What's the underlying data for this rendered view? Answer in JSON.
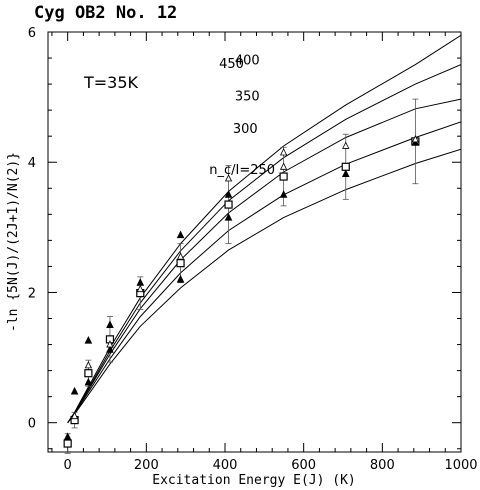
{
  "chart_data": {
    "type": "line",
    "title": "Cyg OB2 No. 12",
    "annotation": "T=35K",
    "xlabel": "Excitation Energy E(J) (K)",
    "ylabel": "-ln {5N(J)/(2J+1)/N(2)}",
    "xlim": [
      -50,
      1000
    ],
    "ylim": [
      -0.45,
      6
    ],
    "xticks": [
      0,
      200,
      400,
      600,
      800,
      1000
    ],
    "yticks": [
      0,
      2,
      4,
      6
    ],
    "grid": false,
    "series": [
      {
        "name": "450",
        "x": [
          0,
          17.6,
          52.7,
          107.5,
          184.6,
          287,
          409,
          549,
          707,
          884,
          1000
        ],
        "y": [
          0,
          0.16,
          0.55,
          1.15,
          1.92,
          2.75,
          3.55,
          4.25,
          4.88,
          5.5,
          5.95
        ]
      },
      {
        "name": "400",
        "x": [
          0,
          17.6,
          52.7,
          107.5,
          184.6,
          287,
          409,
          549,
          707,
          884,
          1000
        ],
        "y": [
          0,
          0.15,
          0.52,
          1.1,
          1.84,
          2.64,
          3.41,
          4.07,
          4.66,
          5.2,
          5.5
        ]
      },
      {
        "name": "350",
        "x": [
          0,
          17.6,
          52.7,
          107.5,
          184.6,
          287,
          409,
          549,
          707,
          884,
          1000
        ],
        "y": [
          0,
          0.15,
          0.5,
          1.05,
          1.75,
          2.5,
          3.22,
          3.85,
          4.38,
          4.82,
          4.97
        ]
      },
      {
        "name": "300",
        "x": [
          0,
          17.6,
          52.7,
          107.5,
          184.6,
          287,
          409,
          549,
          707,
          884,
          1000
        ],
        "y": [
          0,
          0.14,
          0.47,
          0.98,
          1.63,
          2.3,
          2.95,
          3.5,
          3.97,
          4.38,
          4.62
        ]
      },
      {
        "name": "n_c/I=250",
        "x": [
          0,
          17.6,
          52.7,
          107.5,
          184.6,
          287,
          409,
          549,
          707,
          884,
          1000
        ],
        "y": [
          0,
          0.13,
          0.43,
          0.9,
          1.48,
          2.07,
          2.65,
          3.15,
          3.58,
          3.98,
          4.2
        ]
      }
    ],
    "observations": {
      "squares": [
        {
          "x": 0,
          "y": -0.32,
          "err": 0.15
        },
        {
          "x": 17.6,
          "y": 0.04,
          "err": 0.12
        },
        {
          "x": 52.7,
          "y": 0.76,
          "err": 0.2
        },
        {
          "x": 107.5,
          "y": 1.28,
          "err": 0.35
        },
        {
          "x": 184.6,
          "y": 1.99,
          "err": 0.25
        },
        {
          "x": 287,
          "y": 2.45,
          "err": 0.3
        },
        {
          "x": 409,
          "y": 3.35,
          "err": 0.6
        },
        {
          "x": 549,
          "y": 3.78,
          "err": 0.45
        },
        {
          "x": 707,
          "y": 3.93,
          "err": 0.5
        },
        {
          "x": 884,
          "y": 4.32,
          "err": 0.65
        }
      ],
      "filled_triangles": [
        {
          "x": 0,
          "y": -0.22
        },
        {
          "x": 17.6,
          "y": 0.48
        },
        {
          "x": 52.7,
          "y": 1.26
        },
        {
          "x": 107.5,
          "y": 1.5
        },
        {
          "x": 184.6,
          "y": 2.15
        },
        {
          "x": 287,
          "y": 2.88
        },
        {
          "x": 409,
          "y": 3.5
        },
        {
          "x": 549,
          "y": 3.5
        },
        {
          "x": 707,
          "y": 3.82
        },
        {
          "x": 884,
          "y": 4.3
        },
        {
          "x": 52.7,
          "y": 0.62
        },
        {
          "x": 107.5,
          "y": 1.12
        },
        {
          "x": 287,
          "y": 2.2
        },
        {
          "x": 409,
          "y": 3.15
        }
      ],
      "open_triangles": [
        {
          "x": 17.6,
          "y": 0.1
        },
        {
          "x": 52.7,
          "y": 0.88
        },
        {
          "x": 107.5,
          "y": 1.2
        },
        {
          "x": 184.6,
          "y": 2.05
        },
        {
          "x": 287,
          "y": 2.55
        },
        {
          "x": 409,
          "y": 3.75
        },
        {
          "x": 549,
          "y": 4.15
        },
        {
          "x": 549,
          "y": 3.93
        },
        {
          "x": 707,
          "y": 4.25
        },
        {
          "x": 884,
          "y": 4.35
        }
      ]
    }
  }
}
